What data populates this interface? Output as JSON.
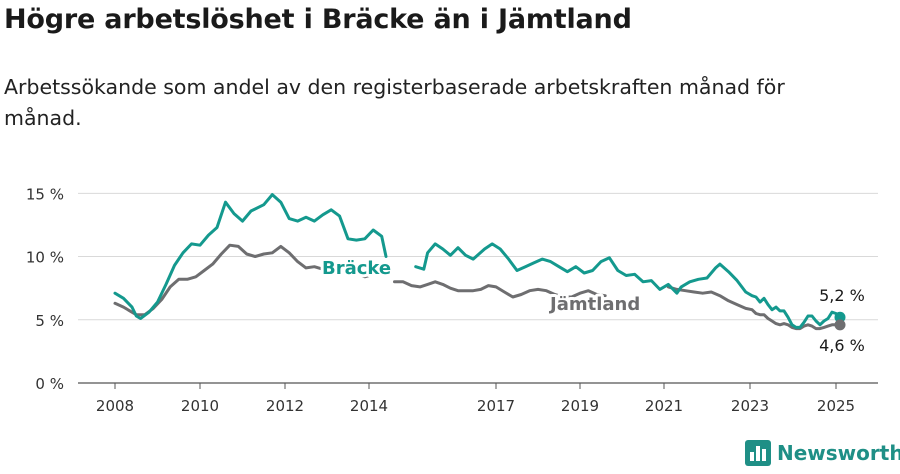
{
  "header": {
    "title": "Högre arbetslöshet i Bräcke än i Jämtland",
    "subtitle": "Arbetssökande som andel av den registerbaserade arbetskraften månad för månad."
  },
  "brand": {
    "name": "Newsworthy",
    "icon": "bar-chart-logo-icon",
    "color": "#1f8f86"
  },
  "chart_data": {
    "type": "line",
    "title": "Högre arbetslöshet i Bräcke än i Jämtland",
    "subtitle": "Arbetssökande som andel av den registerbaserade arbetskraften månad för månad.",
    "x_tick_labels": [
      "2008",
      "2010",
      "2012",
      "2014",
      "2017",
      "2019",
      "2021",
      "2023",
      "2025"
    ],
    "y_tick_labels": [
      "0 %",
      "5 %",
      "10 %",
      "15 %"
    ],
    "y_tick_values": [
      0,
      5,
      10,
      15
    ],
    "ylim": [
      0,
      15.5
    ],
    "xlim": [
      2007.6,
      2025.9
    ],
    "grid": true,
    "legend": "inline labels",
    "series": [
      {
        "name": "Bräcke",
        "color": "#14998e",
        "end_label": "5,2 %",
        "points": [
          [
            2008.0,
            7.1
          ],
          [
            2008.2,
            6.7
          ],
          [
            2008.4,
            6.0
          ],
          [
            2008.5,
            5.3
          ],
          [
            2008.6,
            5.1
          ],
          [
            2008.8,
            5.6
          ],
          [
            2009.0,
            6.4
          ],
          [
            2009.2,
            7.8
          ],
          [
            2009.4,
            9.3
          ],
          [
            2009.6,
            10.3
          ],
          [
            2009.8,
            11.0
          ],
          [
            2010.0,
            10.9
          ],
          [
            2010.2,
            11.7
          ],
          [
            2010.4,
            12.3
          ],
          [
            2010.6,
            14.3
          ],
          [
            2010.8,
            13.4
          ],
          [
            2011.0,
            12.8
          ],
          [
            2011.2,
            13.6
          ],
          [
            2011.5,
            14.1
          ],
          [
            2011.7,
            14.9
          ],
          [
            2011.9,
            14.3
          ],
          [
            2012.1,
            13.0
          ],
          [
            2012.3,
            12.8
          ],
          [
            2012.5,
            13.1
          ],
          [
            2012.7,
            12.8
          ],
          [
            2012.9,
            13.3
          ],
          [
            2013.1,
            13.7
          ],
          [
            2013.3,
            13.2
          ],
          [
            2013.5,
            11.4
          ],
          [
            2013.7,
            11.3
          ],
          [
            2013.9,
            11.4
          ],
          [
            2014.1,
            12.1
          ],
          [
            2014.3,
            11.6
          ],
          [
            2014.4,
            10.0
          ]
        ],
        "points_2": [
          [
            2015.1,
            9.2
          ],
          [
            2015.3,
            9.0
          ],
          [
            2015.4,
            10.3
          ],
          [
            2015.6,
            11.0
          ],
          [
            2015.8,
            10.6
          ],
          [
            2016.0,
            10.1
          ],
          [
            2016.2,
            10.7
          ],
          [
            2016.4,
            10.1
          ],
          [
            2016.6,
            9.8
          ],
          [
            2016.9,
            10.6
          ],
          [
            2017.1,
            11.0
          ],
          [
            2017.3,
            10.6
          ],
          [
            2017.5,
            9.8
          ],
          [
            2017.7,
            8.9
          ],
          [
            2017.9,
            9.2
          ],
          [
            2018.1,
            9.5
          ],
          [
            2018.3,
            9.8
          ],
          [
            2018.5,
            9.6
          ],
          [
            2018.7,
            9.2
          ],
          [
            2018.9,
            8.8
          ],
          [
            2019.1,
            9.2
          ],
          [
            2019.3,
            8.7
          ],
          [
            2019.5,
            8.9
          ],
          [
            2019.7,
            9.6
          ],
          [
            2019.9,
            9.9
          ],
          [
            2020.1,
            8.9
          ],
          [
            2020.3,
            8.5
          ],
          [
            2020.5,
            8.6
          ],
          [
            2020.7,
            8.0
          ],
          [
            2020.9,
            8.1
          ],
          [
            2021.1,
            7.4
          ],
          [
            2021.3,
            7.8
          ],
          [
            2021.5,
            7.1
          ],
          [
            2021.6,
            7.6
          ],
          [
            2021.8,
            8.0
          ],
          [
            2022.0,
            8.2
          ],
          [
            2022.2,
            8.3
          ],
          [
            2022.4,
            9.1
          ],
          [
            2022.5,
            9.4
          ],
          [
            2022.7,
            8.8
          ],
          [
            2022.9,
            8.1
          ],
          [
            2023.1,
            7.2
          ],
          [
            2023.3,
            6.9
          ],
          [
            2023.5,
            6.8
          ],
          [
            2023.7,
            6.4
          ],
          [
            2023.9,
            6.7
          ],
          [
            2024.1,
            6.2
          ],
          [
            2024.3,
            5.8
          ],
          [
            2024.5,
            6.0
          ],
          [
            2024.7,
            5.7
          ],
          [
            2024.9,
            5.7
          ],
          [
            2025.1,
            5.2
          ],
          [
            2025.3,
            4.6
          ],
          [
            2025.5,
            4.4
          ],
          [
            2025.7,
            4.4
          ],
          [
            2025.9,
            4.8
          ],
          [
            2026.1,
            5.3
          ],
          [
            2026.3,
            5.3
          ],
          [
            2026.5,
            4.9
          ],
          [
            2026.7,
            4.6
          ],
          [
            2026.9,
            4.9
          ],
          [
            2027.1,
            5.1
          ],
          [
            2027.3,
            5.6
          ],
          [
            2027.5,
            5.5
          ],
          [
            2027.7,
            5.2
          ]
        ]
      },
      {
        "name": "Jämtland",
        "color": "#6e6e70",
        "end_label": "4,6 %",
        "points": [
          [
            2008.0,
            6.3
          ],
          [
            2008.2,
            6.0
          ],
          [
            2008.4,
            5.6
          ],
          [
            2008.5,
            5.4
          ],
          [
            2008.7,
            5.4
          ],
          [
            2008.9,
            5.9
          ],
          [
            2009.1,
            6.6
          ],
          [
            2009.3,
            7.6
          ],
          [
            2009.5,
            8.2
          ],
          [
            2009.7,
            8.2
          ],
          [
            2009.9,
            8.4
          ],
          [
            2010.1,
            8.9
          ],
          [
            2010.3,
            9.4
          ],
          [
            2010.5,
            10.2
          ],
          [
            2010.7,
            10.9
          ],
          [
            2010.9,
            10.8
          ],
          [
            2011.1,
            10.2
          ],
          [
            2011.3,
            10.0
          ],
          [
            2011.5,
            10.2
          ],
          [
            2011.7,
            10.3
          ],
          [
            2011.9,
            10.8
          ],
          [
            2012.1,
            10.3
          ],
          [
            2012.3,
            9.6
          ],
          [
            2012.5,
            9.1
          ],
          [
            2012.7,
            9.2
          ],
          [
            2012.9,
            9.0
          ],
          [
            2013.1,
            9.3
          ],
          [
            2013.3,
            9.4
          ],
          [
            2013.5,
            9.1
          ],
          [
            2013.7,
            8.7
          ],
          [
            2013.9,
            8.4
          ],
          [
            2014.1,
            8.6
          ]
        ],
        "points_2": [
          [
            2014.6,
            8.0
          ],
          [
            2014.8,
            8.0
          ],
          [
            2015.0,
            7.7
          ],
          [
            2015.2,
            7.6
          ],
          [
            2015.4,
            7.8
          ],
          [
            2015.6,
            8.0
          ],
          [
            2015.8,
            7.8
          ],
          [
            2016.0,
            7.5
          ],
          [
            2016.2,
            7.3
          ],
          [
            2016.4,
            7.3
          ],
          [
            2016.6,
            7.3
          ],
          [
            2016.8,
            7.4
          ],
          [
            2017.0,
            7.7
          ],
          [
            2017.2,
            7.6
          ],
          [
            2017.4,
            7.2
          ],
          [
            2017.6,
            6.8
          ],
          [
            2017.8,
            7.0
          ],
          [
            2018.0,
            7.3
          ],
          [
            2018.2,
            7.4
          ],
          [
            2018.4,
            7.3
          ],
          [
            2018.6,
            7.0
          ],
          [
            2018.8,
            6.8
          ],
          [
            2019.0,
            6.8
          ],
          [
            2019.2,
            7.1
          ],
          [
            2019.4,
            7.3
          ],
          [
            2019.6,
            7.0
          ],
          [
            2019.8,
            6.9
          ]
        ],
        "points_3": [
          [
            2021.3,
            7.6
          ],
          [
            2021.5,
            7.4
          ],
          [
            2021.7,
            7.3
          ],
          [
            2021.9,
            7.2
          ],
          [
            2022.1,
            7.1
          ],
          [
            2022.3,
            7.2
          ],
          [
            2022.5,
            6.9
          ],
          [
            2022.7,
            6.5
          ],
          [
            2022.9,
            6.2
          ],
          [
            2023.1,
            5.9
          ],
          [
            2023.3,
            5.8
          ],
          [
            2023.5,
            5.5
          ],
          [
            2023.7,
            5.4
          ],
          [
            2023.9,
            5.4
          ],
          [
            2024.1,
            5.1
          ],
          [
            2024.3,
            4.9
          ],
          [
            2024.5,
            4.7
          ],
          [
            2024.7,
            4.6
          ],
          [
            2024.9,
            4.7
          ],
          [
            2025.1,
            4.6
          ],
          [
            2025.3,
            4.4
          ],
          [
            2025.5,
            4.3
          ],
          [
            2025.7,
            4.3
          ],
          [
            2025.9,
            4.5
          ],
          [
            2026.1,
            4.6
          ],
          [
            2026.3,
            4.5
          ],
          [
            2026.5,
            4.3
          ],
          [
            2026.7,
            4.3
          ],
          [
            2026.9,
            4.4
          ],
          [
            2027.1,
            4.5
          ],
          [
            2027.3,
            4.6
          ],
          [
            2027.5,
            4.6
          ],
          [
            2027.7,
            4.6
          ]
        ]
      }
    ]
  }
}
